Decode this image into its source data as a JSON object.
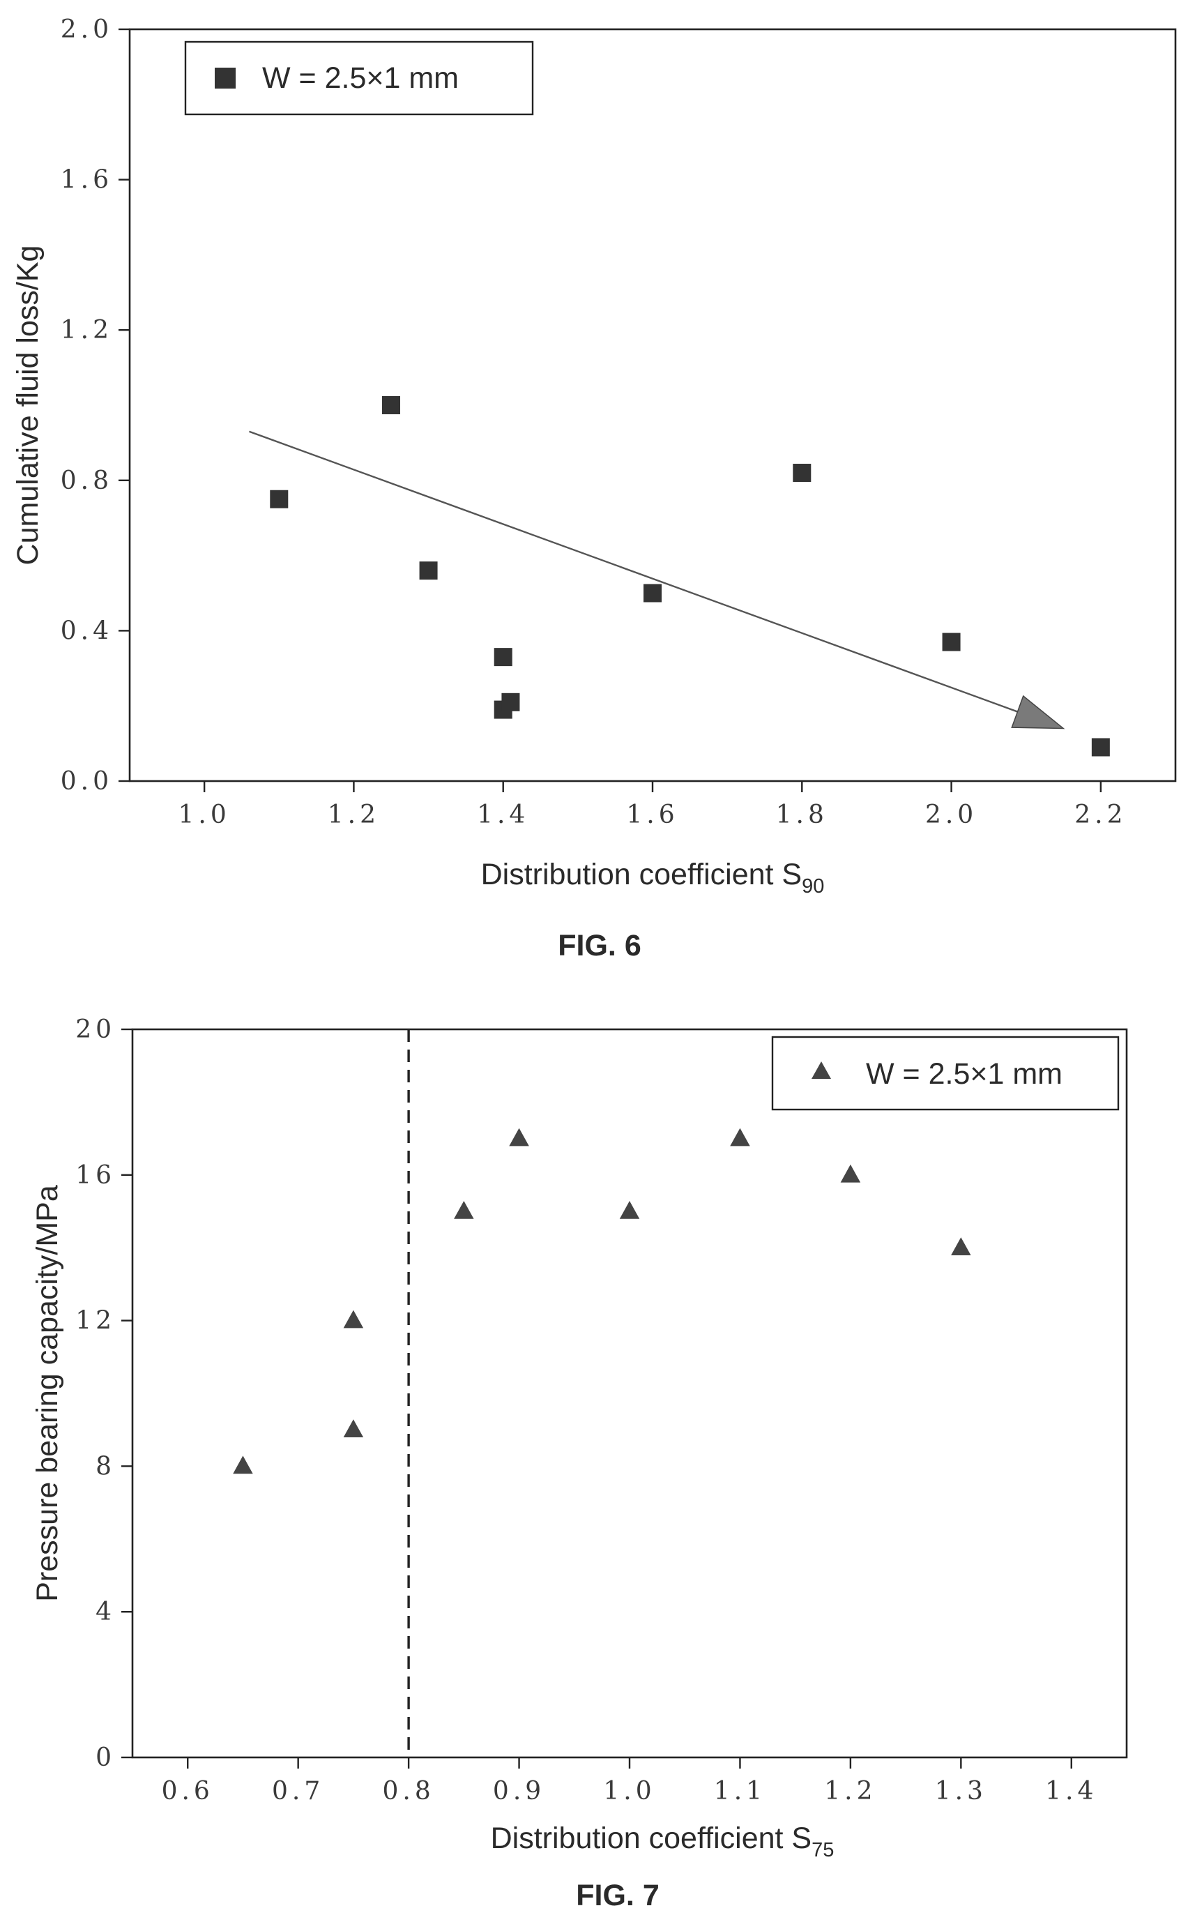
{
  "chart_data": [
    {
      "type": "scatter",
      "figure_label": "FIG. 6",
      "xlabel_main": "Distribution coefficient S",
      "xlabel_sub": "90",
      "ylabel": "Cumulative fluid loss/Kg",
      "xlim": [
        0.9,
        2.3
      ],
      "ylim": [
        0.0,
        2.0
      ],
      "xticks": [
        "1.0",
        "1.2",
        "1.4",
        "1.6",
        "1.8",
        "2.0",
        "2.2"
      ],
      "xtick_values": [
        1.0,
        1.2,
        1.4,
        1.6,
        1.8,
        2.0,
        2.2
      ],
      "yticks": [
        "0.0",
        "0.4",
        "0.8",
        "1.2",
        "1.6",
        "2.0"
      ],
      "ytick_values": [
        0.0,
        0.4,
        0.8,
        1.2,
        1.6,
        2.0
      ],
      "legend_position": "top-left",
      "marker": "square",
      "color": "#333333",
      "series": [
        {
          "name": "W = 2.5×1 mm",
          "x": [
            1.1,
            1.25,
            1.3,
            1.4,
            1.4,
            1.41,
            1.6,
            1.8,
            2.0,
            2.2
          ],
          "y": [
            0.75,
            1.0,
            0.56,
            0.33,
            0.19,
            0.21,
            0.5,
            0.82,
            0.37,
            0.09
          ]
        }
      ],
      "trend_arrow": {
        "from": [
          1.06,
          0.93
        ],
        "to": [
          2.15,
          0.14
        ],
        "color": "#555555"
      }
    },
    {
      "type": "scatter",
      "figure_label": "FIG. 7",
      "xlabel_main": "Distribution coefficient S",
      "xlabel_sub": "75",
      "ylabel": "Pressure bearing capacity/MPa",
      "xlim": [
        0.55,
        1.45
      ],
      "ylim": [
        0,
        20
      ],
      "xticks": [
        "0.6",
        "0.7",
        "0.8",
        "0.9",
        "1.0",
        "1.1",
        "1.2",
        "1.3",
        "1.4"
      ],
      "xtick_values": [
        0.6,
        0.7,
        0.8,
        0.9,
        1.0,
        1.1,
        1.2,
        1.3,
        1.4
      ],
      "yticks": [
        "0",
        "4",
        "8",
        "12",
        "16",
        "20"
      ],
      "ytick_values": [
        0,
        4,
        8,
        12,
        16,
        20
      ],
      "legend_position": "top-right",
      "marker": "triangle",
      "color": "#444444",
      "series": [
        {
          "name": "W = 2.5×1 mm",
          "x": [
            0.65,
            0.75,
            0.75,
            0.85,
            0.9,
            1.0,
            1.1,
            1.2,
            1.3
          ],
          "y": [
            8,
            9,
            12,
            15,
            17,
            15,
            17,
            16,
            14
          ]
        }
      ],
      "vertical_dashed_line": 0.8
    }
  ]
}
